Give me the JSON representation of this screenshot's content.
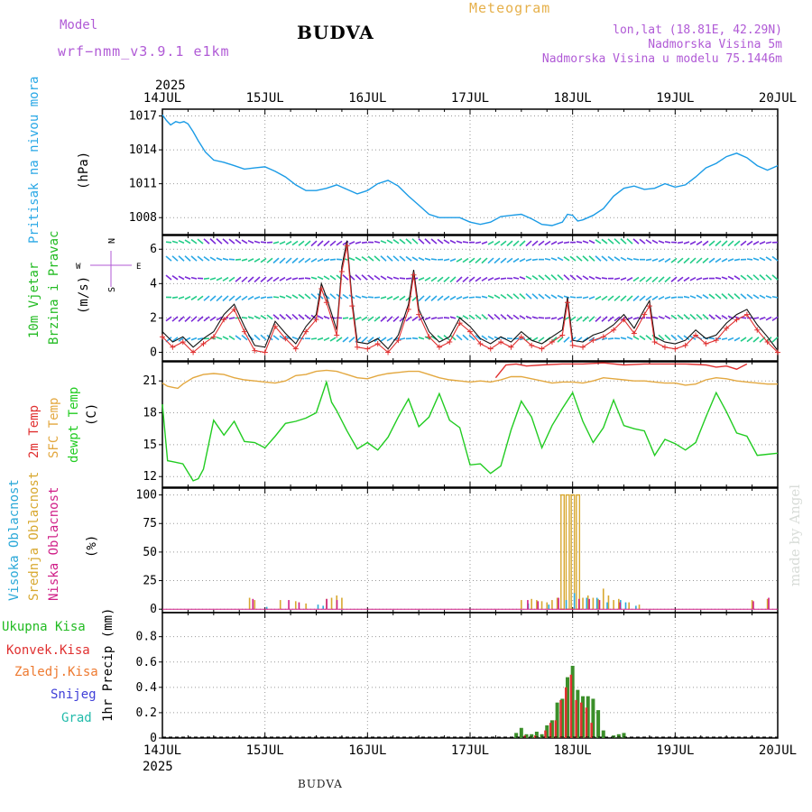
{
  "header": {
    "model_label": "Model",
    "model_name": "wrf−nmm_v3.9.1  e1km",
    "location": "BUDVA",
    "meteogram": "Meteogram",
    "lonlat": "lon,lat (18.81E, 42.29N)",
    "elevation": "Nadmorska Visina 5m",
    "model_elevation": "Nadmorska Visina u modelu 75.1446m"
  },
  "footer": {
    "location": "BUDVA",
    "credit": "made by Angel"
  },
  "xaxis": {
    "year": "2025",
    "days": [
      "14JUL",
      "15JUL",
      "16JUL",
      "17JUL",
      "18JUL",
      "19JUL",
      "20JUL"
    ]
  },
  "colors": {
    "pressure": "#1a9be6",
    "wind_speed": "#e03030",
    "wind_dir": "#111111",
    "temp2m": "#e03030",
    "sfc_temp": "#e3a840",
    "dewpoint": "#22cc22",
    "high_cloud": "#2aa8d8",
    "mid_cloud": "#d8a830",
    "low_cloud": "#d02088",
    "precip_total": "#3b8f2a",
    "precip_conv": "#e03030"
  },
  "chart_data": [
    {
      "type": "line",
      "panel": "pressure",
      "ylabel": [
        "Pritisak na nivou mora",
        "(hPa)"
      ],
      "yticks": [
        1008,
        1011,
        1014,
        1017
      ],
      "ylim": [
        1006.5,
        1017.6
      ],
      "x": [
        0,
        0.04,
        0.08,
        0.13,
        0.17,
        0.21,
        0.25,
        0.3,
        0.35,
        0.42,
        0.5,
        0.6,
        0.7,
        0.8,
        0.9,
        1.0,
        1.1,
        1.2,
        1.3,
        1.4,
        1.5,
        1.6,
        1.7,
        1.8,
        1.9,
        2.0,
        2.1,
        2.2,
        2.3,
        2.4,
        2.5,
        2.6,
        2.7,
        2.8,
        2.9,
        3.0,
        3.1,
        3.2,
        3.3,
        3.4,
        3.5,
        3.6,
        3.7,
        3.8,
        3.9,
        3.95,
        4.0,
        4.05,
        4.1,
        4.2,
        4.3,
        4.4,
        4.5,
        4.6,
        4.7,
        4.8,
        4.9,
        5.0,
        5.1,
        5.2,
        5.3,
        5.4,
        5.5,
        5.6,
        5.7,
        5.8,
        5.9,
        6.0
      ],
      "series": [
        {
          "values": [
            1017.1,
            1016.6,
            1016.2,
            1016.5,
            1016.4,
            1016.5,
            1016.3,
            1015.6,
            1014.8,
            1013.8,
            1013.1,
            1012.9,
            1012.6,
            1012.3,
            1012.4,
            1012.5,
            1012.1,
            1011.6,
            1010.9,
            1010.4,
            1010.4,
            1010.6,
            1010.9,
            1010.5,
            1010.1,
            1010.4,
            1011.0,
            1011.3,
            1010.8,
            1009.9,
            1009.1,
            1008.3,
            1008.0,
            1008.0,
            1008.0,
            1007.6,
            1007.4,
            1007.6,
            1008.1,
            1008.2,
            1008.3,
            1007.9,
            1007.4,
            1007.3,
            1007.6,
            1008.3,
            1008.2,
            1007.7,
            1007.8,
            1008.2,
            1008.8,
            1009.9,
            1010.6,
            1010.8,
            1010.5,
            1010.6,
            1011.0,
            1010.7,
            1010.9,
            1011.6,
            1012.4,
            1012.8,
            1013.4,
            1013.7,
            1013.3,
            1012.6,
            1012.2,
            1012.6
          ]
        }
      ]
    },
    {
      "type": "line",
      "panel": "wind",
      "ylabel": [
        "10m Vjetar",
        "Brzina i Pravac",
        "(m/s)"
      ],
      "compass": {
        "n": "N",
        "w": "W",
        "e": "E",
        "s": "S"
      },
      "yticks": [
        0,
        2,
        4,
        6
      ],
      "ylim": [
        -0.5,
        6.8
      ],
      "x": [
        0,
        0.1,
        0.2,
        0.3,
        0.4,
        0.5,
        0.6,
        0.7,
        0.8,
        0.9,
        1.0,
        1.1,
        1.2,
        1.3,
        1.4,
        1.5,
        1.55,
        1.6,
        1.7,
        1.75,
        1.8,
        1.85,
        1.9,
        2.0,
        2.1,
        2.2,
        2.3,
        2.4,
        2.45,
        2.5,
        2.6,
        2.7,
        2.8,
        2.9,
        3.0,
        3.1,
        3.2,
        3.3,
        3.4,
        3.5,
        3.6,
        3.7,
        3.8,
        3.9,
        3.95,
        4.0,
        4.1,
        4.2,
        4.3,
        4.4,
        4.5,
        4.6,
        4.7,
        4.75,
        4.8,
        4.9,
        5.0,
        5.1,
        5.2,
        5.3,
        5.4,
        5.5,
        5.6,
        5.7,
        5.8,
        5.9,
        6.0
      ],
      "series": [
        {
          "values": [
            1.2,
            0.6,
            0.9,
            0.3,
            0.8,
            1.2,
            2.2,
            2.8,
            1.5,
            0.4,
            0.3,
            1.8,
            1.1,
            0.5,
            1.5,
            2.2,
            4.0,
            3.2,
            1.3,
            5.0,
            6.5,
            3.0,
            0.6,
            0.5,
            0.8,
            0.2,
            1.0,
            2.8,
            4.8,
            2.5,
            1.2,
            0.6,
            0.9,
            2.0,
            1.5,
            0.8,
            0.5,
            0.9,
            0.6,
            1.2,
            0.7,
            0.5,
            0.9,
            1.3,
            3.2,
            0.7,
            0.6,
            1.0,
            1.2,
            1.6,
            2.2,
            1.4,
            2.5,
            3.0,
            0.9,
            0.6,
            0.5,
            0.7,
            1.3,
            0.8,
            1.0,
            1.7,
            2.2,
            2.5,
            1.6,
            0.9,
            0.1
          ]
        }
      ]
    },
    {
      "type": "line",
      "panel": "temperature",
      "ylabel": [
        "2m Temp",
        "SFC Temp",
        "dewpt Temp",
        "(C)"
      ],
      "yticks": [
        12,
        15,
        18,
        21
      ],
      "ylim": [
        11.0,
        22.8
      ],
      "series": [
        {
          "name": "SFC Temp",
          "x": [
            0,
            0.05,
            0.1,
            0.15,
            0.2,
            0.3,
            0.4,
            0.5,
            0.6,
            0.7,
            0.8,
            0.9,
            1.0,
            1.1,
            1.2,
            1.3,
            1.4,
            1.5,
            1.6,
            1.7,
            1.8,
            1.9,
            2.0,
            2.1,
            2.2,
            2.3,
            2.4,
            2.5,
            2.6,
            2.7,
            2.8,
            2.9,
            3.0,
            3.1,
            3.2,
            3.3,
            3.4,
            3.5,
            3.6,
            3.7,
            3.8,
            3.9,
            4.0,
            4.1,
            4.2,
            4.3,
            4.4,
            4.5,
            4.6,
            4.7,
            4.8,
            4.9,
            5.0,
            5.1,
            5.2,
            5.3,
            5.4,
            5.5,
            5.6,
            5.7,
            5.8,
            5.9,
            6.0
          ],
          "values": [
            20.8,
            20.5,
            20.4,
            20.3,
            20.7,
            21.3,
            21.6,
            21.7,
            21.6,
            21.3,
            21.1,
            21.0,
            20.9,
            20.8,
            21.0,
            21.5,
            21.6,
            21.9,
            22.0,
            21.9,
            21.6,
            21.3,
            21.2,
            21.5,
            21.7,
            21.8,
            21.9,
            21.9,
            21.6,
            21.3,
            21.1,
            21.0,
            20.9,
            21.0,
            20.9,
            21.1,
            21.4,
            21.4,
            21.2,
            21.0,
            20.8,
            20.9,
            20.9,
            20.8,
            21.0,
            21.3,
            21.2,
            21.1,
            21.0,
            21.0,
            20.9,
            20.8,
            20.8,
            20.6,
            20.7,
            21.1,
            21.3,
            21.2,
            21.0,
            20.9,
            20.8,
            20.7,
            20.7
          ]
        },
        {
          "name": "2m Temp",
          "x": [
            3.25,
            3.35,
            3.45,
            3.55,
            3.7,
            3.9,
            4.1,
            4.3,
            4.5,
            4.7,
            4.9,
            5.1,
            5.3,
            5.4,
            5.5,
            5.6,
            5.7
          ],
          "values": [
            21.3,
            22.5,
            22.6,
            22.4,
            22.5,
            22.6,
            22.6,
            22.7,
            22.5,
            22.6,
            22.6,
            22.6,
            22.5,
            22.3,
            22.4,
            22.1,
            22.6
          ]
        },
        {
          "name": "dewpt Temp",
          "x": [
            0,
            0.05,
            0.1,
            0.2,
            0.3,
            0.35,
            0.4,
            0.5,
            0.6,
            0.7,
            0.8,
            0.9,
            1.0,
            1.1,
            1.2,
            1.3,
            1.4,
            1.5,
            1.6,
            1.65,
            1.7,
            1.8,
            1.9,
            2.0,
            2.1,
            2.2,
            2.3,
            2.4,
            2.5,
            2.6,
            2.7,
            2.8,
            2.9,
            3.0,
            3.1,
            3.2,
            3.3,
            3.4,
            3.5,
            3.6,
            3.7,
            3.8,
            3.9,
            4.0,
            4.1,
            4.2,
            4.3,
            4.4,
            4.5,
            4.6,
            4.7,
            4.8,
            4.9,
            5.0,
            5.1,
            5.2,
            5.3,
            5.4,
            5.5,
            5.6,
            5.7,
            5.8,
            5.9,
            6.0
          ],
          "values": [
            18.8,
            13.5,
            13.4,
            13.2,
            11.6,
            11.8,
            12.7,
            17.3,
            15.9,
            17.2,
            15.3,
            15.2,
            14.7,
            15.8,
            17.0,
            17.2,
            17.5,
            18.0,
            20.9,
            19.0,
            18.2,
            16.3,
            14.6,
            15.2,
            14.5,
            15.7,
            17.6,
            19.3,
            16.7,
            17.6,
            19.8,
            17.3,
            16.6,
            13.1,
            13.2,
            12.3,
            13.0,
            16.4,
            19.1,
            17.6,
            14.7,
            16.8,
            18.4,
            19.9,
            17.2,
            15.2,
            16.6,
            19.2,
            16.8,
            16.5,
            16.3,
            14.0,
            15.5,
            15.1,
            14.5,
            15.2,
            17.6,
            19.9,
            18.1,
            16.1,
            15.8,
            14.0,
            14.1,
            14.2
          ]
        }
      ]
    },
    {
      "type": "bar",
      "panel": "cloud",
      "ylabel": [
        "Visoka Oblacnost",
        "Srednja Oblacnost",
        "Niska Oblacnost",
        "(%)"
      ],
      "yticks": [
        0,
        25,
        50,
        75,
        100
      ],
      "ylim": [
        -3,
        106
      ],
      "series": [
        {
          "name": "Srednja Oblacnost",
          "x": [
            0.85,
            0.9,
            1.15,
            1.3,
            1.4,
            1.6,
            1.65,
            1.7,
            1.75,
            3.5,
            3.6,
            3.65,
            3.7,
            3.75,
            3.8,
            3.85,
            3.9,
            3.95,
            4.0,
            4.05,
            4.1,
            4.15,
            4.2,
            4.25,
            4.3,
            4.35,
            4.4,
            4.45,
            4.55,
            4.65,
            5.75,
            5.9
          ],
          "values": [
            10,
            8,
            8,
            7,
            5,
            9,
            10,
            12,
            10,
            8,
            9,
            8,
            7,
            6,
            8,
            10,
            100,
            100,
            100,
            100,
            10,
            12,
            10,
            9,
            18,
            12,
            8,
            9,
            6,
            4,
            8,
            9
          ]
        },
        {
          "name": "Visoka Oblacnost",
          "x": [
            1.0,
            1.5,
            1.55,
            3.55,
            3.75,
            3.92,
            4.0,
            4.12,
            4.22,
            4.32,
            4.45,
            4.5,
            4.6
          ],
          "values": [
            2,
            4,
            3,
            5,
            4,
            8,
            14,
            10,
            10,
            6,
            8,
            6,
            3
          ]
        },
        {
          "name": "Niska Oblacnost",
          "x": [
            0.9,
            1.25,
            1.35,
            1.62,
            1.72,
            3.58,
            3.68,
            3.88,
            4.08,
            4.18,
            4.28,
            4.48,
            5.78,
            5.93
          ],
          "values": [
            9,
            8,
            6,
            9,
            8,
            8,
            7,
            10,
            9,
            9,
            8,
            6,
            7,
            10
          ]
        }
      ]
    },
    {
      "type": "bar",
      "panel": "precip",
      "ylabel": [
        "1hr Precip (mm)"
      ],
      "legend": [
        "Ukupna Kisa",
        "Konvek.Kisa",
        "Zaledj.Kisa",
        "Snijeg",
        "Grad"
      ],
      "yticks": [
        0,
        0.2,
        0.4,
        0.6,
        0.8
      ],
      "ylim": [
        0,
        0.99
      ],
      "series": [
        {
          "name": "Ukupna Kisa",
          "x": [
            3.45,
            3.5,
            3.55,
            3.6,
            3.65,
            3.7,
            3.75,
            3.8,
            3.85,
            3.9,
            3.95,
            4.0,
            4.05,
            4.1,
            4.15,
            4.2,
            4.25,
            4.3,
            4.4,
            4.45,
            4.5
          ],
          "values": [
            0.04,
            0.08,
            0.03,
            0.03,
            0.05,
            0.03,
            0.1,
            0.14,
            0.28,
            0.31,
            0.48,
            0.57,
            0.38,
            0.33,
            0.33,
            0.31,
            0.22,
            0.06,
            0.02,
            0.03,
            0.04
          ]
        },
        {
          "name": "Konvek.Kisa",
          "x": [
            3.55,
            3.65,
            3.75,
            3.8,
            3.85,
            3.9,
            3.95,
            4.0,
            4.05,
            4.1,
            4.15,
            4.2
          ],
          "values": [
            0.02,
            0.02,
            0.06,
            0.12,
            0.14,
            0.3,
            0.4,
            0.5,
            0.3,
            0.28,
            0.24,
            0.12
          ]
        }
      ]
    }
  ]
}
